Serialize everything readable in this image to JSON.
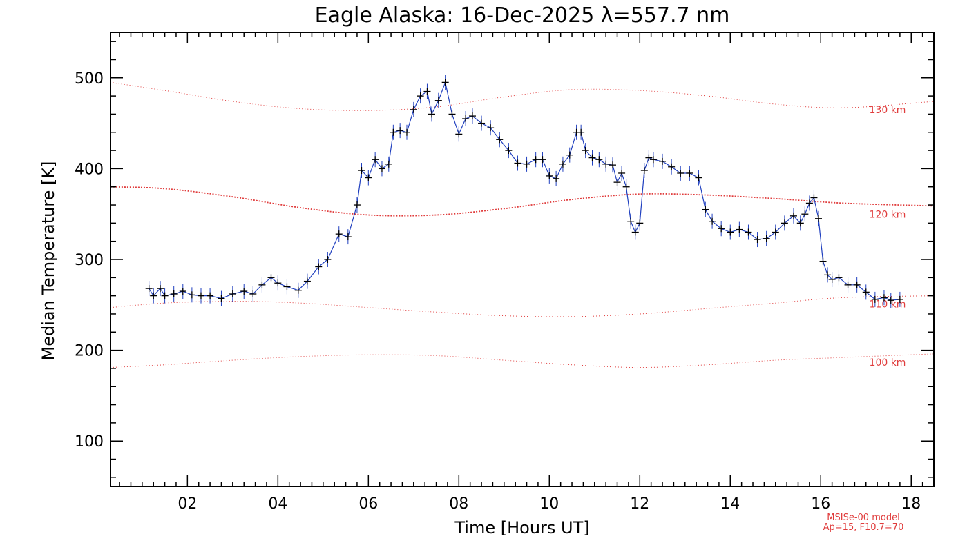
{
  "chart_data": {
    "type": "line",
    "title": "Eagle Alaska: 16-Dec-2025 λ=557.7 nm",
    "xlabel": "Time [Hours UT]",
    "ylabel": "Median Temperature [K]",
    "xlim": [
      0.3,
      18.5
    ],
    "ylim": [
      50,
      550
    ],
    "xticks": [
      {
        "value": 2,
        "label": "02"
      },
      {
        "value": 4,
        "label": "04"
      },
      {
        "value": 6,
        "label": "06"
      },
      {
        "value": 8,
        "label": "08"
      },
      {
        "value": 10,
        "label": "10"
      },
      {
        "value": 12,
        "label": "12"
      },
      {
        "value": 14,
        "label": "14"
      },
      {
        "value": 16,
        "label": "16"
      },
      {
        "value": 18,
        "label": "18"
      }
    ],
    "yticks": [
      {
        "value": 100,
        "label": "100"
      },
      {
        "value": 200,
        "label": "200"
      },
      {
        "value": 300,
        "label": "300"
      },
      {
        "value": 400,
        "label": "400"
      },
      {
        "value": 500,
        "label": "500"
      }
    ],
    "grid": false,
    "colors": {
      "data_line": "#1f3fbf",
      "markers": "#000000",
      "model": "#e03c3c"
    },
    "series": [
      {
        "x": [
          1.15,
          1.25,
          1.4,
          1.5,
          1.7,
          1.9,
          2.1,
          2.3,
          2.5,
          2.75,
          3.0,
          3.25,
          3.45,
          3.65,
          3.85,
          4.0,
          4.2,
          4.45,
          4.65,
          4.9,
          5.1,
          5.35,
          5.55,
          5.75,
          5.85,
          6.0,
          6.15,
          6.3,
          6.45,
          6.55,
          6.7,
          6.85,
          7.0,
          7.15,
          7.3,
          7.4,
          7.55,
          7.7,
          7.85,
          8.0,
          8.15,
          8.3,
          8.5,
          8.7,
          8.9,
          9.1,
          9.3,
          9.5,
          9.7,
          9.85,
          10.0,
          10.15,
          10.3,
          10.45,
          10.6,
          10.7,
          10.8,
          10.95,
          11.1,
          11.25,
          11.4,
          11.5,
          11.6,
          11.7,
          11.8,
          11.9,
          12.0,
          12.1,
          12.2,
          12.3,
          12.5,
          12.7,
          12.9,
          13.1,
          13.3,
          13.45,
          13.6,
          13.8,
          14.0,
          14.2,
          14.4,
          14.6,
          14.8,
          15.0,
          15.2,
          15.4,
          15.55,
          15.65,
          15.75,
          15.85,
          15.95,
          16.05,
          16.15,
          16.25,
          16.4,
          16.6,
          16.8,
          17.0,
          17.2,
          17.4,
          17.55,
          17.75
        ],
        "y": [
          268,
          260,
          268,
          260,
          262,
          265,
          261,
          260,
          260,
          257,
          262,
          265,
          262,
          272,
          280,
          274,
          270,
          266,
          276,
          292,
          300,
          328,
          325,
          360,
          398,
          390,
          410,
          400,
          405,
          440,
          442,
          440,
          465,
          480,
          485,
          460,
          475,
          495,
          460,
          438,
          455,
          458,
          450,
          445,
          432,
          420,
          406,
          405,
          410,
          410,
          392,
          389,
          405,
          415,
          440,
          440,
          420,
          412,
          410,
          405,
          404,
          385,
          395,
          380,
          342,
          330,
          340,
          398,
          412,
          410,
          408,
          402,
          395,
          395,
          390,
          355,
          342,
          334,
          330,
          333,
          330,
          322,
          323,
          330,
          340,
          348,
          340,
          350,
          362,
          368,
          345,
          298,
          283,
          278,
          280,
          272,
          272,
          264,
          256,
          258,
          255,
          256
        ]
      }
    ],
    "model_curves": [
      {
        "name": "130 km",
        "x": [
          0.3,
          1.5,
          3,
          4.5,
          6,
          7.5,
          9,
          10.5,
          12,
          13.5,
          15,
          16.5,
          18.5
        ],
        "y": [
          495,
          486,
          474,
          466,
          464,
          468,
          479,
          487,
          486,
          480,
          471,
          467,
          474
        ]
      },
      {
        "name": "120 km",
        "x": [
          0.3,
          1.5,
          3,
          4.5,
          6,
          7.5,
          9,
          10.5,
          12,
          13.5,
          15,
          16.5,
          18.5
        ],
        "y": [
          380,
          378,
          369,
          357,
          349,
          349,
          356,
          366,
          372,
          371,
          367,
          362,
          359
        ]
      },
      {
        "name": "110 km",
        "x": [
          0.3,
          1.5,
          3,
          4.5,
          6,
          7.5,
          9,
          10.5,
          12,
          13.5,
          15,
          16.5,
          18.5
        ],
        "y": [
          247,
          252,
          254,
          252,
          247,
          242,
          238,
          237,
          240,
          246,
          252,
          258,
          260
        ]
      },
      {
        "name": "100 km",
        "x": [
          0.3,
          1.5,
          3,
          4.5,
          6,
          7.5,
          9,
          10.5,
          12,
          13.5,
          15,
          16.5,
          18.5
        ],
        "y": [
          181,
          184,
          189,
          193,
          195,
          194,
          189,
          184,
          181,
          184,
          189,
          192,
          196
        ]
      }
    ],
    "model_notes": [
      "MSISe-00 model",
      "Ap=15, F10.7=70"
    ]
  }
}
